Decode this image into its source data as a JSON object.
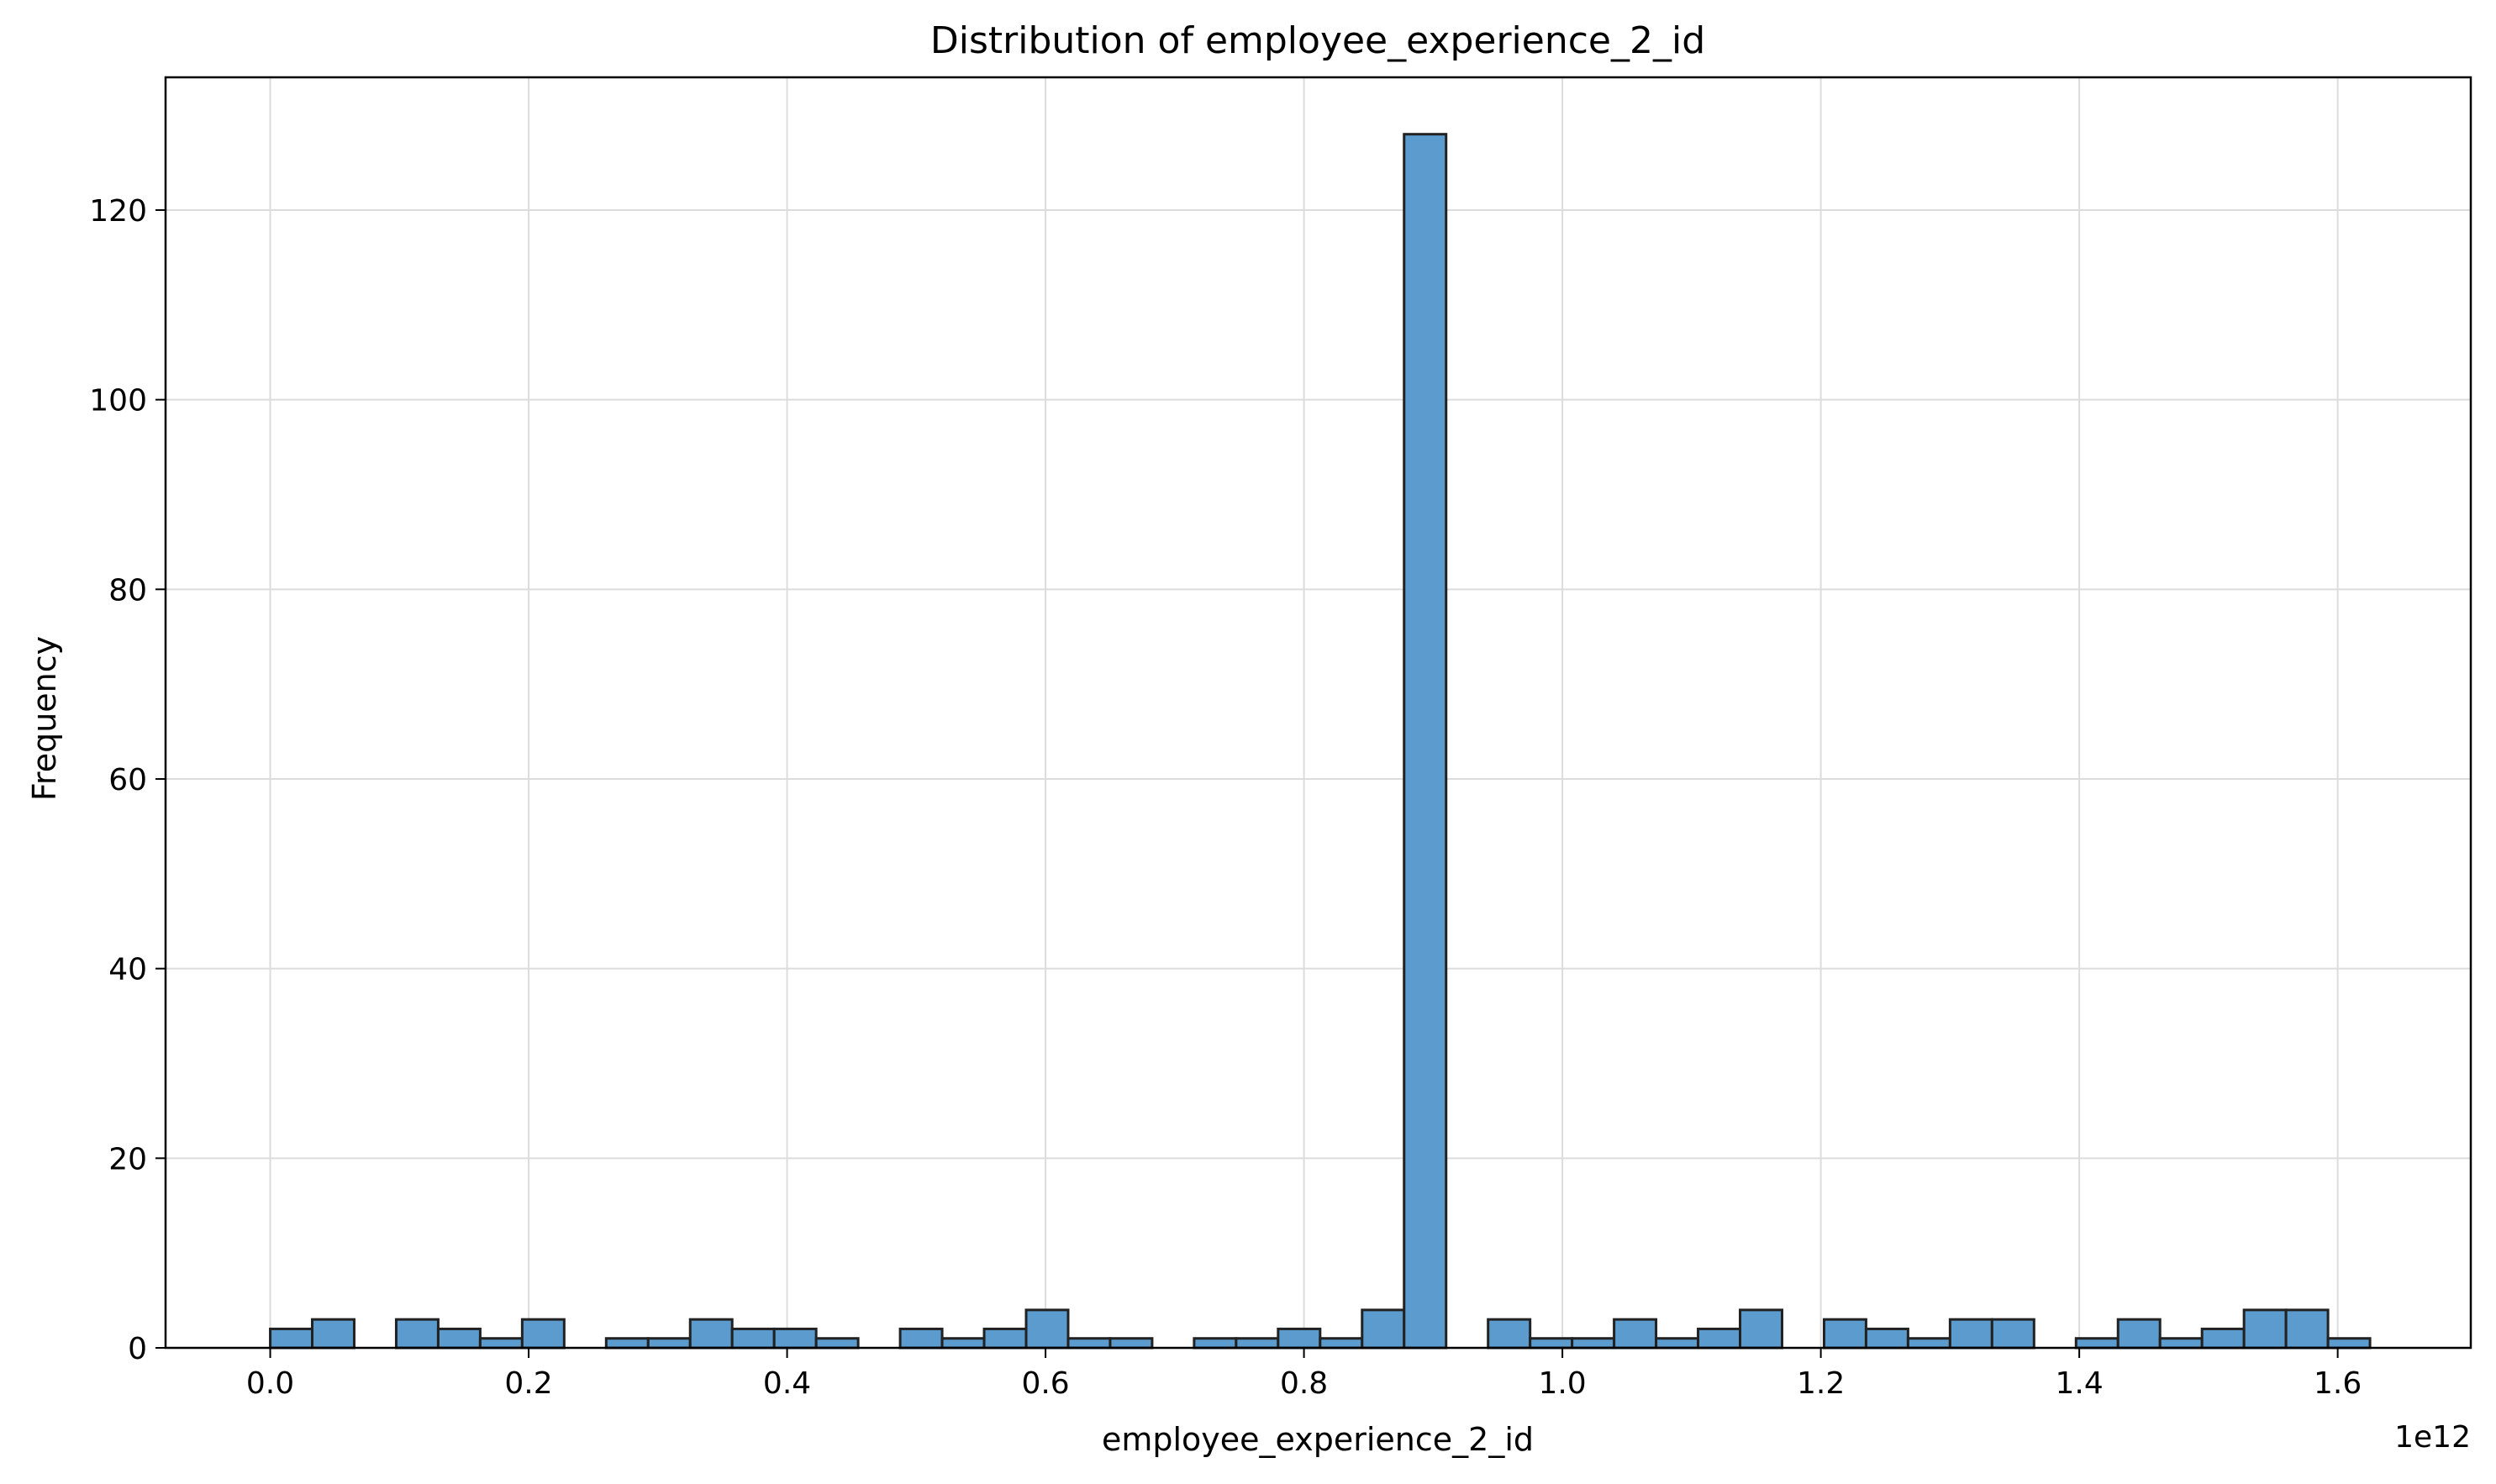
{
  "chart_data": {
    "type": "bar",
    "title": "Distribution of employee_experience_2_id",
    "xlabel": "employee_experience_2_id",
    "ylabel": "Frequency",
    "x_offset_label": "1e12",
    "x_ticks": [
      "0.0",
      "0.2",
      "0.4",
      "0.6",
      "0.8",
      "1.0",
      "1.2",
      "1.4",
      "1.6"
    ],
    "y_ticks": [
      "0",
      "20",
      "40",
      "60",
      "80",
      "100",
      "120"
    ],
    "xlim": [
      -0.081,
      1.703
    ],
    "ylim": [
      0,
      134
    ],
    "bin_edges_start": 0.0,
    "bin_width": 0.0325,
    "values": [
      2,
      3,
      0,
      3,
      2,
      1,
      3,
      0,
      1,
      1,
      3,
      2,
      2,
      1,
      0,
      2,
      1,
      2,
      4,
      1,
      1,
      0,
      1,
      1,
      2,
      1,
      4,
      128,
      0,
      3,
      1,
      1,
      3,
      1,
      2,
      4,
      0,
      3,
      2,
      1,
      3,
      3,
      0,
      1,
      3,
      1,
      2,
      4,
      4,
      1
    ],
    "grid": true,
    "colors": {
      "bar_fill": "#5b9bcd",
      "bar_edge": "#222222"
    }
  }
}
